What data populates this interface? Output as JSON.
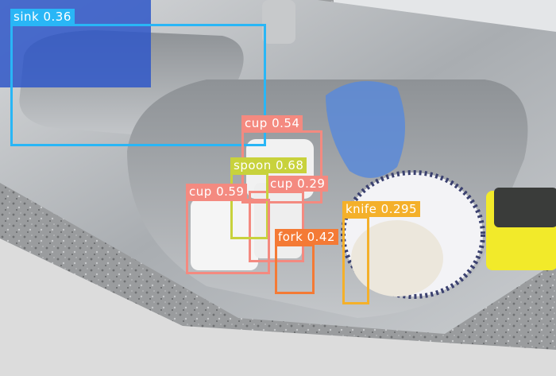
{
  "detections": [
    {
      "label": "sink",
      "score": "0.36",
      "color": "#29b6f6"
    },
    {
      "label": "cup",
      "score": "0.54",
      "color": "#f48a80"
    },
    {
      "label": "spoon",
      "score": "0.68",
      "color": "#c8d23c"
    },
    {
      "label": "cup",
      "score": "0.29",
      "color": "#f48a80"
    },
    {
      "label": "cup",
      "score": "0.59",
      "color": "#f48a80"
    },
    {
      "label": "knife",
      "score": "0.295",
      "color": "#f4b02a"
    },
    {
      "label": "fork",
      "score": "0.42",
      "color": "#f47a35"
    }
  ]
}
